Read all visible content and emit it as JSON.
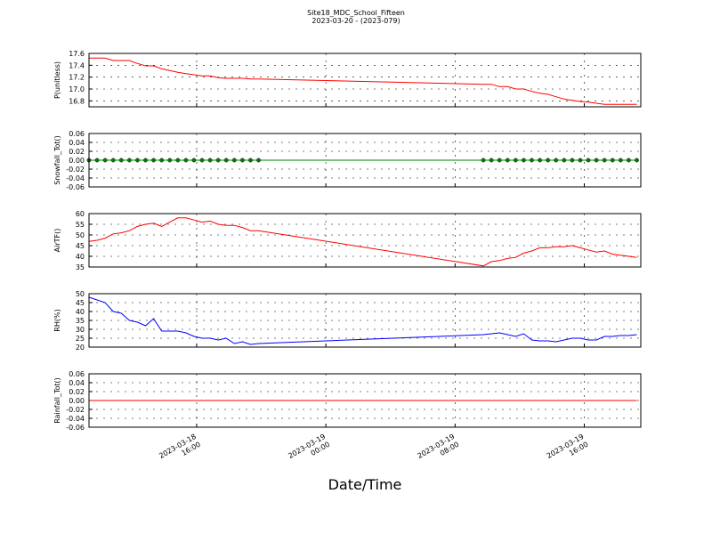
{
  "chart_data": {
    "type": "line",
    "title": "Site18_MDC_School_Fifteen",
    "subtitle": "2023-03-20 - (2023-079)",
    "x_label": "Date/Time",
    "grid": true,
    "x": [
      "2023-03-18 09:20",
      "2023-03-18 09:50",
      "2023-03-18 10:20",
      "2023-03-18 10:50",
      "2023-03-18 11:20",
      "2023-03-18 11:50",
      "2023-03-18 12:20",
      "2023-03-18 12:50",
      "2023-03-18 13:20",
      "2023-03-18 13:50",
      "2023-03-18 14:20",
      "2023-03-18 14:50",
      "2023-03-18 15:20",
      "2023-03-18 15:50",
      "2023-03-18 16:20",
      "2023-03-18 16:50",
      "2023-03-18 17:20",
      "2023-03-18 17:50",
      "2023-03-18 18:20",
      "2023-03-18 18:50",
      "2023-03-18 19:20",
      "2023-03-18 19:50",
      "2023-03-19 09:45",
      "2023-03-19 10:15",
      "2023-03-19 10:45",
      "2023-03-19 11:15",
      "2023-03-19 11:45",
      "2023-03-19 12:15",
      "2023-03-19 12:45",
      "2023-03-19 13:15",
      "2023-03-19 13:45",
      "2023-03-19 14:15",
      "2023-03-19 14:45",
      "2023-03-19 15:15",
      "2023-03-19 15:45",
      "2023-03-19 16:15",
      "2023-03-19 16:45",
      "2023-03-19 17:15",
      "2023-03-19 17:45",
      "2023-03-19 18:15",
      "2023-03-19 18:45",
      "2023-03-19 19:15"
    ],
    "xlim": [
      "2023-03-18 09:20",
      "2023-03-19 19:30"
    ],
    "xticks": [
      "2023-03-18 16:00",
      "2023-03-19 00:00",
      "2023-03-19 08:00",
      "2023-03-19 16:00"
    ],
    "panels": [
      {
        "name": "P(unitless)",
        "color": "#ff0000",
        "marker": false,
        "ylim": [
          16.7,
          17.6
        ],
        "yticks": [
          16.8,
          {
            "value": 17,
            "label": "17.0"
          },
          17.2,
          17.4,
          17.6
        ],
        "values": [
          17.52,
          17.52,
          17.52,
          17.48,
          17.48,
          17.48,
          17.43,
          17.39,
          17.39,
          17.34,
          17.31,
          17.28,
          17.26,
          17.24,
          17.22,
          17.22,
          17.19,
          17.18,
          17.18,
          17.18,
          17.17,
          17.17,
          17.08,
          17.08,
          17.04,
          17.04,
          17.0,
          17.0,
          16.96,
          16.93,
          16.91,
          16.87,
          16.83,
          16.81,
          16.79,
          16.78,
          16.76,
          16.74,
          16.74,
          16.74,
          16.74,
          16.74
        ]
      },
      {
        "name": "Snowfall_Tot()",
        "color": "#008000",
        "marker": true,
        "ylim": [
          -0.06,
          0.06
        ],
        "yticks": [
          -0.06,
          -0.04,
          -0.02,
          {
            "value": 0,
            "label": "0.00"
          },
          0.02,
          0.04,
          0.06
        ],
        "values": [
          0,
          0,
          0,
          0,
          0,
          0,
          0,
          0,
          0,
          0,
          0,
          0,
          0,
          0,
          0,
          0,
          0,
          0,
          0,
          0,
          0,
          0,
          0,
          0,
          0,
          0,
          0,
          0,
          0,
          0,
          0,
          0,
          0,
          0,
          0,
          0,
          0,
          0,
          0,
          0,
          0,
          0
        ]
      },
      {
        "name": "AirTF()",
        "color": "#ff0000",
        "marker": false,
        "ylim": [
          35,
          60
        ],
        "yticks": [
          35,
          40,
          45,
          50,
          55,
          60
        ],
        "values": [
          47,
          47.5,
          48.5,
          50.5,
          51,
          52,
          54,
          55,
          55.5,
          54,
          56,
          58,
          58,
          57,
          56,
          56.5,
          55,
          54.5,
          54.5,
          53.5,
          52,
          52,
          35.5,
          37.5,
          38,
          39,
          39.5,
          41.5,
          42.5,
          44,
          44,
          44.5,
          44.5,
          45,
          44,
          43,
          42,
          42.5,
          41,
          40.5,
          40,
          39.5
        ]
      },
      {
        "name": "RH(%)",
        "color": "#0000ff",
        "marker": false,
        "ylim": [
          20,
          50
        ],
        "yticks": [
          20,
          25,
          30,
          35,
          40,
          45,
          50
        ],
        "values": [
          48,
          46.5,
          45,
          40,
          39,
          35,
          34,
          32,
          36,
          29,
          29,
          29,
          28,
          26,
          25,
          25,
          24,
          25,
          22,
          23,
          21.5,
          22,
          27,
          27.5,
          28,
          27,
          26,
          27.5,
          24,
          23.5,
          23.5,
          23,
          24,
          25,
          25,
          24,
          24,
          26,
          26,
          26.5,
          26.5,
          27
        ]
      },
      {
        "name": "Rainfall_Tot()",
        "color": "#ff0000",
        "marker": false,
        "ylim": [
          -0.06,
          0.06
        ],
        "yticks": [
          -0.06,
          -0.04,
          -0.02,
          {
            "value": 0,
            "label": "0.00"
          },
          0.02,
          0.04,
          0.06
        ],
        "values": [
          0,
          0,
          0,
          0,
          0,
          0,
          0,
          0,
          0,
          0,
          0,
          0,
          0,
          0,
          0,
          0,
          0,
          0,
          0,
          0,
          0,
          0,
          0,
          0,
          0,
          0,
          0,
          0,
          0,
          0,
          0,
          0,
          0,
          0,
          0,
          0,
          0,
          0,
          0,
          0,
          0,
          0
        ]
      }
    ]
  }
}
